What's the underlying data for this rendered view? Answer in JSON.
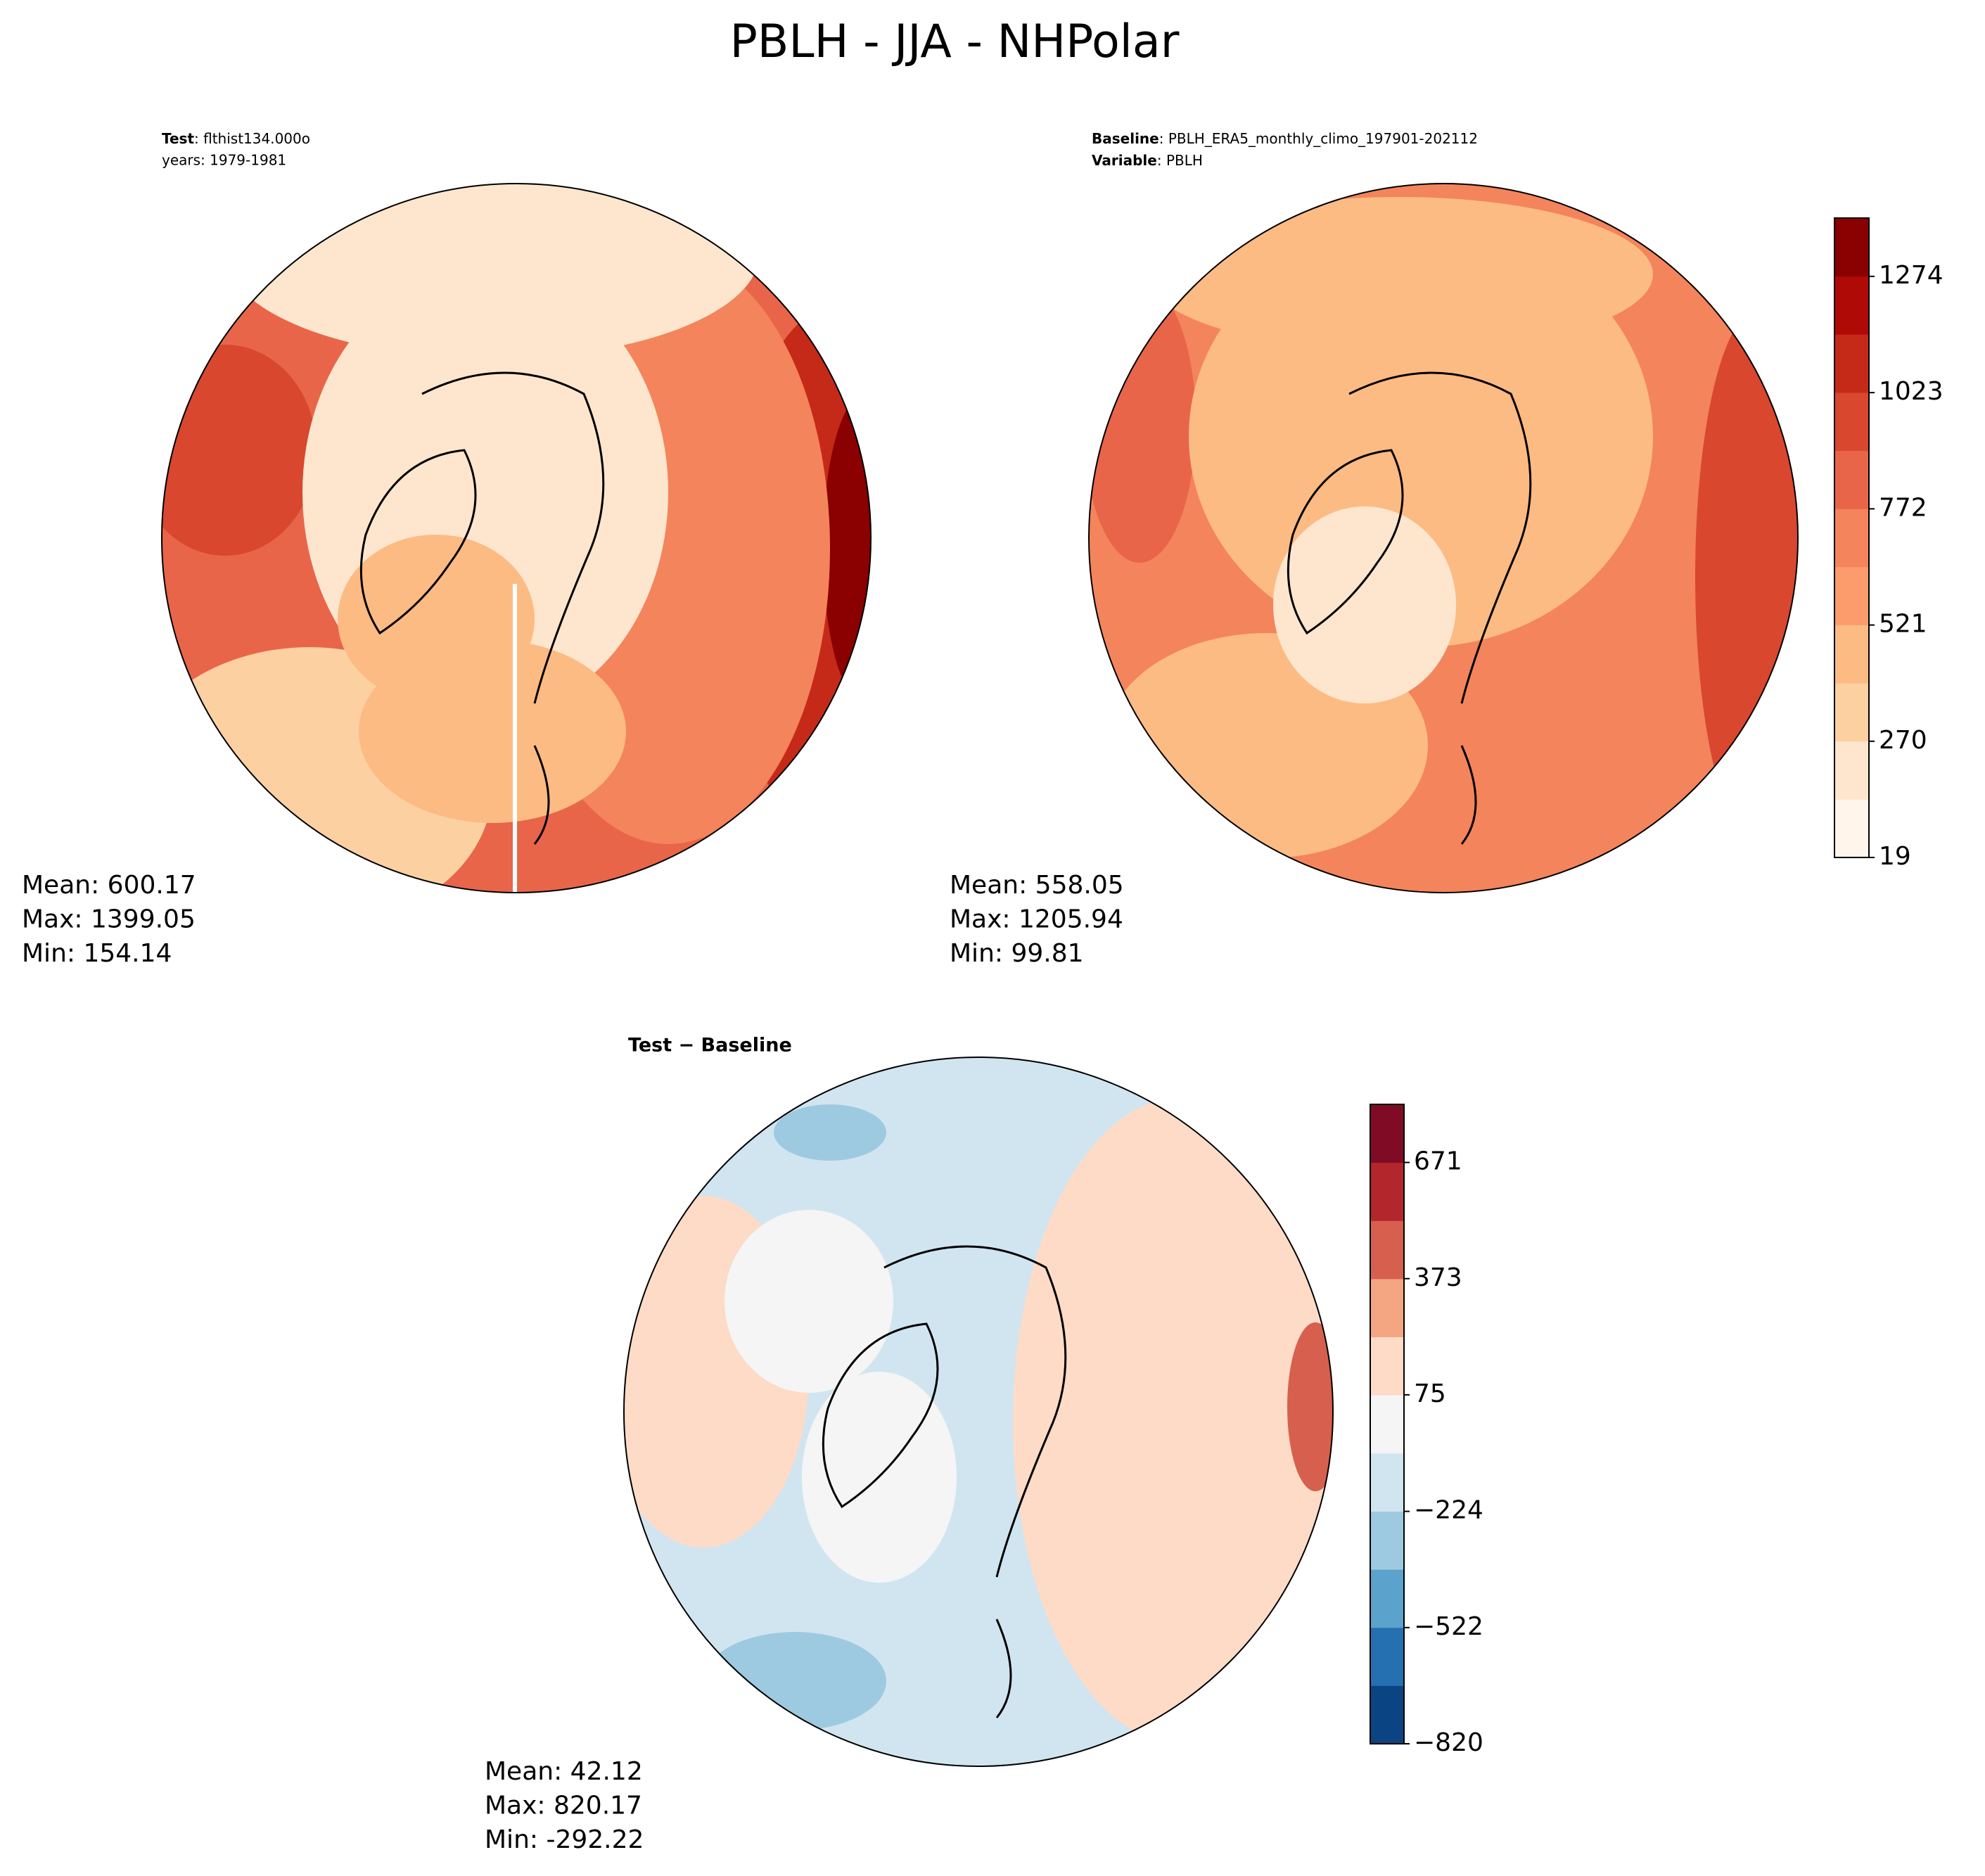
{
  "title": "PBLH - JJA - NHPolar",
  "panels": [
    {
      "label": "Test",
      "text": ": flthist134.000o",
      "line2": "years: 1979-1981",
      "stats": [
        "Mean: 600.17",
        "Max: 1399.05",
        "Min: 154.14"
      ]
    },
    {
      "label": "Baseline",
      "text": ": PBLH_ERA5_monthly_climo_197901-202112",
      "label2": "Variable",
      "text2": ": PBLH",
      "stats": [
        "Mean: 558.05",
        "Max: 1205.94",
        "Min: 99.81"
      ]
    },
    {
      "title": "Test − Baseline",
      "stats": [
        "Mean: 42.12",
        "Max: 820.17",
        "Min: -292.22"
      ]
    }
  ],
  "colorbars": [
    {
      "lim": [
        19,
        1400
      ],
      "ticks": [
        19,
        270,
        521,
        772,
        1023,
        1274
      ],
      "colors": [
        "#fff5eb",
        "#fee6ce",
        "#fdd0a2",
        "#fdbb84",
        "#fc9c6c",
        "#f4845b",
        "#e8654a",
        "#d9472f",
        "#c52a18",
        "#b00a06",
        "#8b0000"
      ]
    },
    {
      "lim": [
        -820,
        820
      ],
      "ticks": [
        {
          "value": -820,
          "label": "−820"
        },
        {
          "value": -522,
          "label": "−522"
        },
        {
          "value": -224,
          "label": "−224"
        },
        75,
        373,
        671
      ],
      "colors": [
        "#0b4483",
        "#2470b0",
        "#5ba2cc",
        "#9ecae1",
        "#d1e5f0",
        "#f5f5f5",
        "#fddbc7",
        "#f4a582",
        "#d6604d",
        "#b2262c",
        "#800b25"
      ]
    }
  ]
}
